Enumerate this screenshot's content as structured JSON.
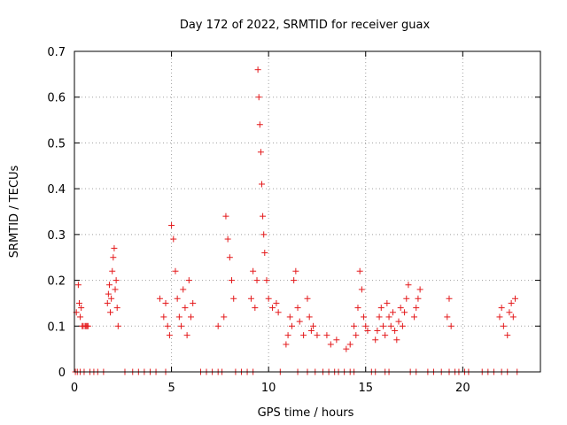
{
  "chart_data": {
    "type": "scatter",
    "title": "Day 172 of 2022, SRMTID for receiver guax",
    "xlabel": "GPS time / hours",
    "ylabel": "SRMTID / TECUs",
    "xlim": [
      0,
      24
    ],
    "ylim": [
      0,
      0.7
    ],
    "xticks": [
      "0",
      "5",
      "10",
      "15",
      "20"
    ],
    "xtick_values": [
      0,
      5,
      10,
      15,
      20
    ],
    "yticks": [
      "0",
      "0.1",
      "0.2",
      "0.3",
      "0.4",
      "0.5",
      "0.6",
      "0.7"
    ],
    "ytick_values": [
      0,
      0.1,
      0.2,
      0.3,
      0.4,
      0.5,
      0.6,
      0.7
    ],
    "grid": true,
    "marker": "+",
    "colors": {
      "series": "#e41a1c",
      "grid": "#a0a0a0",
      "axis": "#000000"
    },
    "series": [
      {
        "x": [
          0.1,
          0.2,
          0.25,
          0.3,
          0.35,
          0.4,
          0.45,
          0.55,
          0.6,
          0.65,
          0.7,
          1.7,
          1.75,
          1.8,
          1.85,
          1.9,
          1.95,
          2.0,
          2.05,
          2.1,
          2.15,
          2.2,
          2.25,
          4.4,
          4.6,
          4.7,
          4.8,
          4.9,
          5.0,
          5.1,
          5.2,
          5.3,
          5.4,
          5.5,
          5.6,
          5.7,
          5.8,
          5.9,
          6.0,
          6.1,
          7.4,
          7.7,
          7.8,
          7.9,
          8.0,
          8.1,
          8.2,
          9.1,
          9.2,
          9.3,
          9.4,
          9.45,
          9.5,
          9.55,
          9.6,
          9.65,
          9.7,
          9.75,
          9.8,
          9.9,
          10.0,
          10.2,
          10.4,
          10.5,
          10.9,
          11.0,
          11.1,
          11.2,
          11.3,
          11.4,
          11.5,
          11.6,
          11.8,
          12.0,
          12.1,
          12.2,
          12.3,
          12.5,
          13.0,
          13.2,
          13.5,
          14.0,
          14.2,
          14.4,
          14.5,
          14.6,
          14.7,
          14.8,
          14.9,
          15.0,
          15.1,
          15.5,
          15.6,
          15.7,
          15.8,
          15.9,
          16.0,
          16.1,
          16.2,
          16.3,
          16.4,
          16.5,
          16.6,
          16.7,
          16.8,
          16.9,
          17.0,
          17.1,
          17.2,
          17.5,
          17.6,
          17.7,
          17.8,
          19.2,
          19.3,
          19.4,
          21.9,
          22.0,
          22.1,
          22.3,
          22.4,
          22.5,
          22.6,
          22.7
        ],
        "y": [
          0.13,
          0.19,
          0.15,
          0.12,
          0.14,
          0.1,
          0.1,
          0.1,
          0.1,
          0.1,
          0.1,
          0.15,
          0.17,
          0.19,
          0.13,
          0.16,
          0.22,
          0.25,
          0.27,
          0.18,
          0.2,
          0.14,
          0.1,
          0.16,
          0.12,
          0.15,
          0.1,
          0.08,
          0.32,
          0.29,
          0.22,
          0.16,
          0.12,
          0.1,
          0.18,
          0.14,
          0.08,
          0.2,
          0.12,
          0.15,
          0.1,
          0.12,
          0.34,
          0.29,
          0.25,
          0.2,
          0.16,
          0.16,
          0.22,
          0.14,
          0.2,
          0.66,
          0.6,
          0.54,
          0.48,
          0.41,
          0.34,
          0.3,
          0.26,
          0.2,
          0.16,
          0.14,
          0.15,
          0.13,
          0.06,
          0.08,
          0.12,
          0.1,
          0.2,
          0.22,
          0.14,
          0.11,
          0.08,
          0.16,
          0.12,
          0.09,
          0.1,
          0.08,
          0.08,
          0.06,
          0.07,
          0.05,
          0.06,
          0.1,
          0.08,
          0.14,
          0.22,
          0.18,
          0.12,
          0.1,
          0.09,
          0.07,
          0.09,
          0.12,
          0.14,
          0.1,
          0.08,
          0.15,
          0.12,
          0.1,
          0.13,
          0.09,
          0.07,
          0.11,
          0.14,
          0.1,
          0.13,
          0.16,
          0.19,
          0.12,
          0.14,
          0.16,
          0.18,
          0.12,
          0.16,
          0.1,
          0.12,
          0.14,
          0.1,
          0.08,
          0.13,
          0.15,
          0.12,
          0.16
        ]
      },
      {
        "x": [
          0.05,
          0.15,
          0.3,
          0.5,
          0.8,
          1.0,
          1.2,
          1.5,
          2.6,
          3.0,
          3.3,
          3.6,
          3.9,
          4.2,
          4.7,
          6.5,
          6.8,
          7.1,
          7.4,
          7.6,
          8.3,
          8.6,
          8.9,
          9.2,
          10.6,
          11.5,
          12.0,
          12.4,
          12.8,
          13.1,
          13.4,
          13.6,
          13.9,
          14.2,
          14.4,
          15.3,
          15.5,
          16.0,
          16.2,
          17.3,
          17.6,
          18.2,
          18.5,
          18.9,
          19.3,
          19.6,
          19.8,
          20.1,
          20.3,
          21.0,
          21.3,
          21.6,
          22.0,
          22.3,
          22.8
        ],
        "y": [
          0,
          0,
          0,
          0,
          0,
          0,
          0,
          0,
          0,
          0,
          0,
          0,
          0,
          0,
          0,
          0,
          0,
          0,
          0,
          0,
          0,
          0,
          0,
          0,
          0,
          0,
          0,
          0,
          0,
          0,
          0,
          0,
          0,
          0,
          0,
          0,
          0,
          0,
          0,
          0,
          0,
          0,
          0,
          0,
          0,
          0,
          0,
          0,
          0,
          0,
          0,
          0,
          0,
          0,
          0
        ]
      }
    ]
  }
}
